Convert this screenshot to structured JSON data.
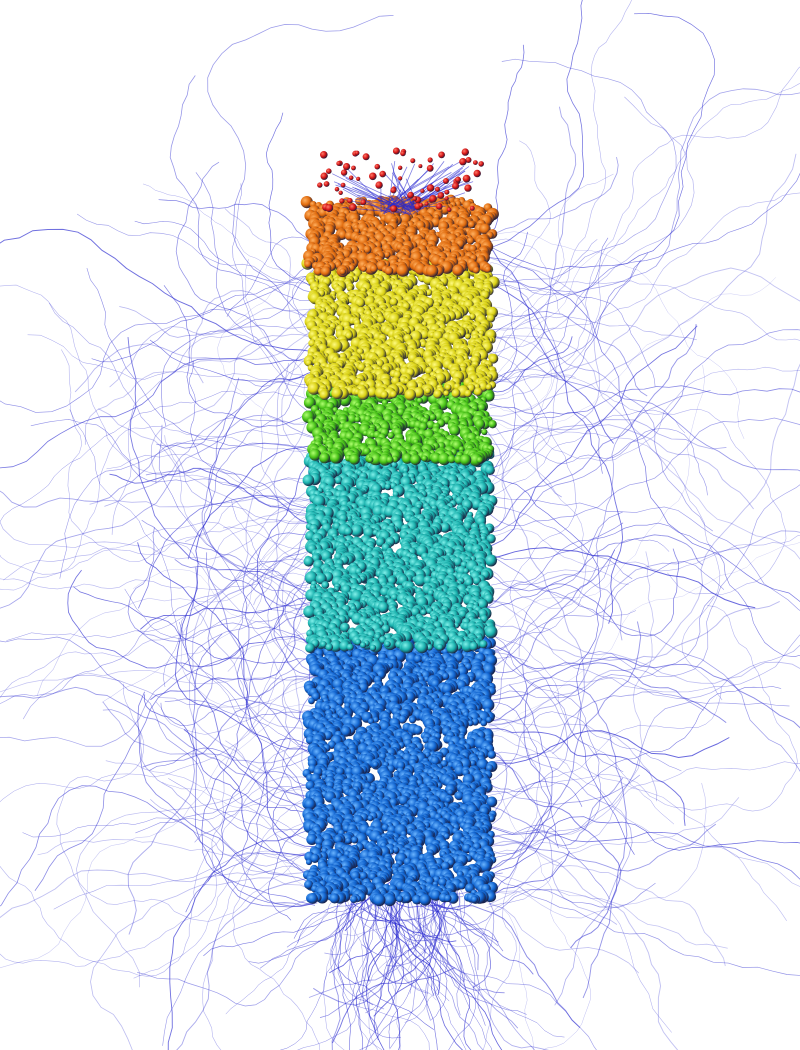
{
  "scene": {
    "background": "#ffffff",
    "fiber_color": "#2a2ad0",
    "bands": [
      {
        "name": "tip",
        "color": "#d41414",
        "highlight": "#ff7a6a"
      },
      {
        "name": "orange",
        "color": "#e06a0c",
        "highlight": "#ffb060"
      },
      {
        "name": "yellow",
        "color": "#d8d010",
        "highlight": "#fffa80"
      },
      {
        "name": "green",
        "color": "#44c014",
        "highlight": "#b0ff70"
      },
      {
        "name": "teal",
        "color": "#18b0ac",
        "highlight": "#80f0ea"
      },
      {
        "name": "blue",
        "color": "#1064d0",
        "highlight": "#6ab4ff"
      }
    ]
  }
}
